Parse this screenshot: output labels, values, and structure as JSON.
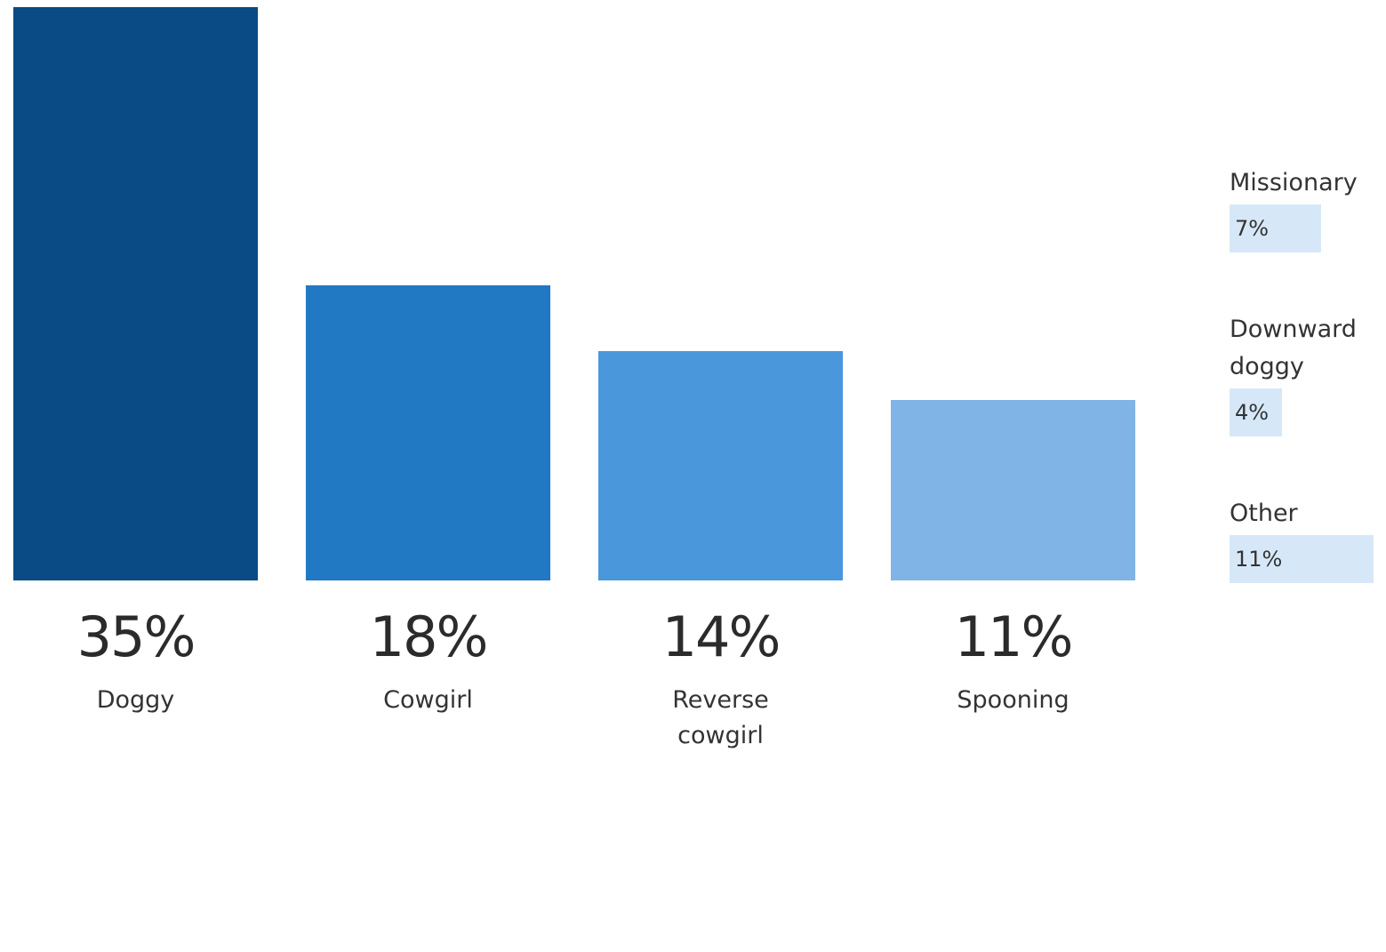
{
  "chart_data": {
    "type": "bar",
    "categories": [
      "Doggy",
      "Cowgirl",
      "Reverse cowgirl",
      "Spooning"
    ],
    "values": [
      35,
      18,
      14,
      11
    ],
    "value_labels": [
      "35%",
      "18%",
      "14%",
      "11%"
    ],
    "colors": [
      "#0a4a85",
      "#2279c3",
      "#4a97dc",
      "#80b4e6"
    ],
    "other_positions": {
      "categories": [
        "Missionary",
        "Downward doggy",
        "Other"
      ],
      "values": [
        7,
        4,
        11
      ],
      "value_labels": [
        "7%",
        "4%",
        "11%"
      ],
      "color": "#d6e8f8"
    }
  }
}
